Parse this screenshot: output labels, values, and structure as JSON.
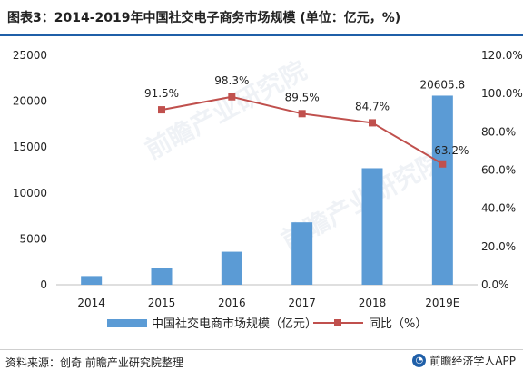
{
  "title": "图表3：2014-2019年中国社交电子商务市场规模 (单位：亿元，%)",
  "source": "资料来源：创奇 前瞻产业研究院整理",
  "brand": "前瞻经济学人APP",
  "watermark": "前瞻产业研究院",
  "colors": {
    "bar": "#5b9bd5",
    "line": "#c0504d",
    "title_rule": "#1f5fa8"
  },
  "chart_data": {
    "type": "bar",
    "categories": [
      "2014",
      "2015",
      "2016",
      "2017",
      "2018",
      "2019E"
    ],
    "series": [
      {
        "name": "中国社交电商市场规模（亿元）",
        "type": "bar",
        "axis": "left",
        "values": [
          950,
          1850,
          3600,
          6800,
          12700,
          20605.8
        ],
        "labels": [
          null,
          null,
          null,
          null,
          null,
          "20605.8"
        ]
      },
      {
        "name": "同比（%）",
        "type": "line",
        "axis": "right",
        "values": [
          null,
          91.5,
          98.3,
          89.5,
          84.7,
          63.2
        ],
        "labels": [
          null,
          "91.5%",
          "98.3%",
          "89.5%",
          "84.7%",
          "63.2%"
        ]
      }
    ],
    "y_left": {
      "ticks": [
        "0",
        "5000",
        "10000",
        "15000",
        "20000",
        "25000"
      ],
      "ylim": [
        0,
        25000
      ]
    },
    "y_right": {
      "ticks": [
        "0.0%",
        "20.0%",
        "40.0%",
        "60.0%",
        "80.0%",
        "100.0%",
        "120.0%"
      ],
      "ylim": [
        0,
        120
      ]
    },
    "legend_position": "bottom",
    "grid": false
  }
}
